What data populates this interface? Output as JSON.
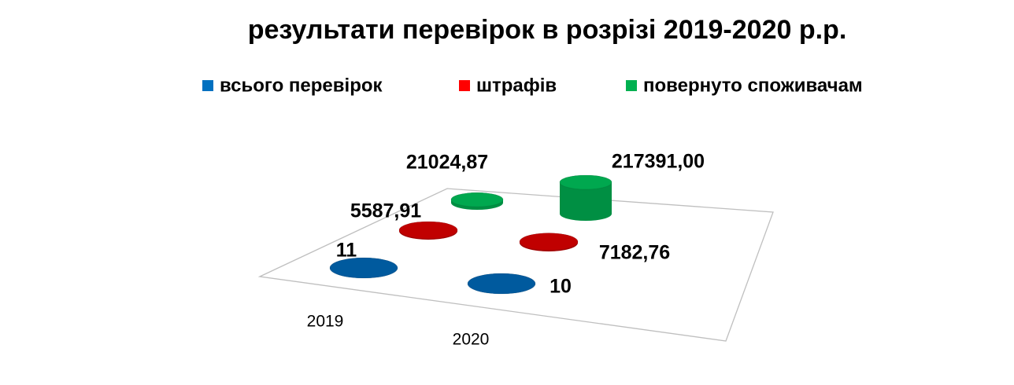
{
  "chart_data": {
    "type": "bar3d",
    "title": "результати перевірок в розрізі 2019-2020 р.р.",
    "categories": [
      "2019",
      "2020"
    ],
    "series": [
      {
        "name": "всього перевірок",
        "color": "#0070c0",
        "values": [
          11,
          10
        ]
      },
      {
        "name": "штрафів",
        "color": "#ff0000",
        "values": [
          5587.91,
          7182.76
        ],
        "value_labels": [
          "5587,91",
          "7182,76"
        ]
      },
      {
        "name": "повернуто споживачам",
        "color": "#00b050",
        "values": [
          21024.87,
          217391.0
        ],
        "value_labels": [
          "21024,87",
          "217391,00"
        ]
      }
    ]
  }
}
